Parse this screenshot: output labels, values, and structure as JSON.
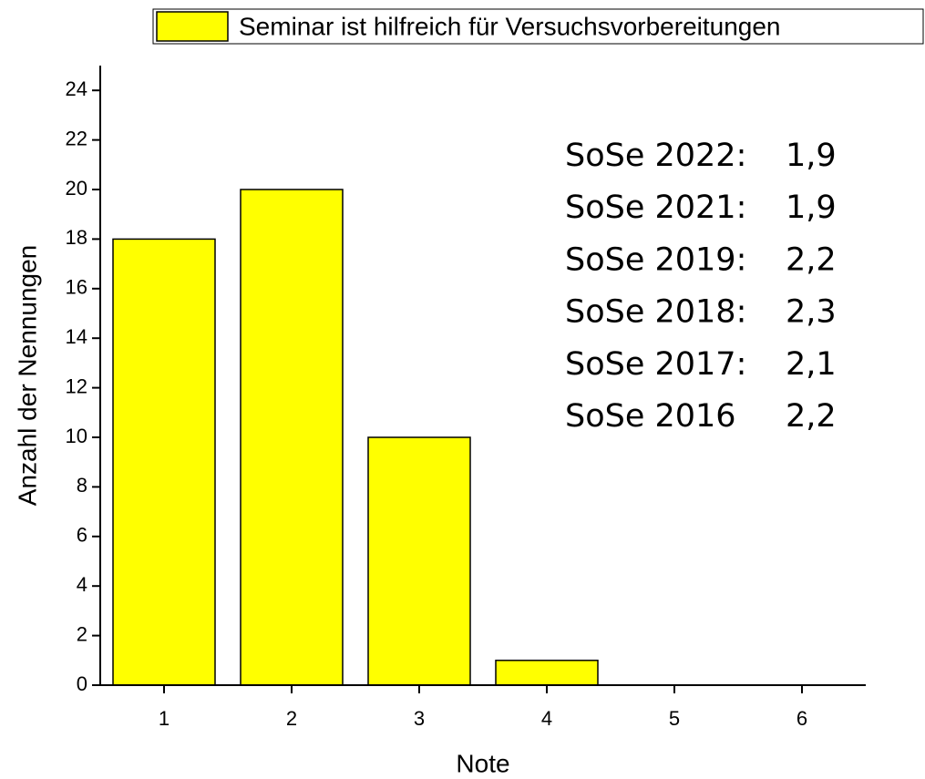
{
  "chart_data": {
    "type": "bar",
    "x_label": "Note",
    "y_label": "Anzahl der Nennungen",
    "x": [
      1,
      2,
      3,
      4,
      5,
      6
    ],
    "series": [
      {
        "name": "Seminar ist hilfreich für Versuchsvorbereitungen",
        "color": "#ffff00",
        "values": [
          18,
          20,
          10,
          1,
          0,
          0
        ]
      }
    ],
    "xlim": [
      0.5,
      6.5
    ],
    "xticks": [
      1,
      2,
      3,
      4,
      5,
      6
    ],
    "ylim": [
      0,
      25
    ],
    "yticks": [
      0,
      2,
      4,
      6,
      8,
      10,
      12,
      14,
      16,
      18,
      20,
      22,
      24
    ],
    "legend": "top",
    "annotations": [
      {
        "label": "SoSe 2022:",
        "value": "1,9"
      },
      {
        "label": "SoSe 2021:",
        "value": "1,9"
      },
      {
        "label": "SoSe 2019:",
        "value": "2,2"
      },
      {
        "label": "SoSe 2018:",
        "value": "2,3"
      },
      {
        "label": "SoSe 2017:",
        "value": "2,1"
      },
      {
        "label": "SoSe 2016",
        "value": "2,2"
      }
    ]
  }
}
